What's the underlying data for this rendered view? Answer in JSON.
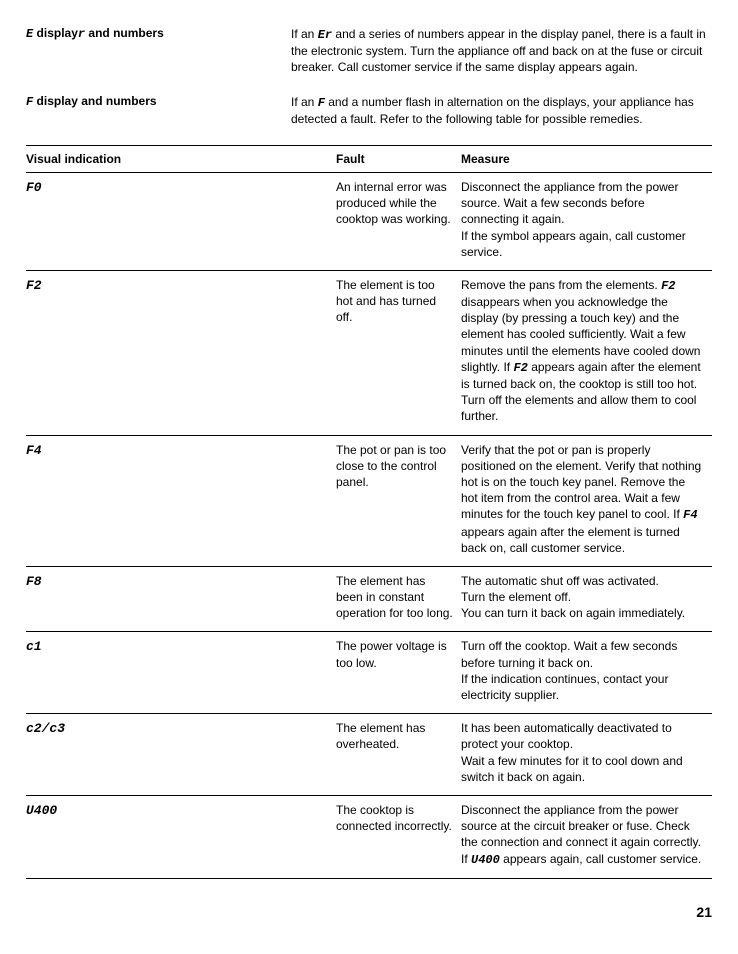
{
  "intro": [
    {
      "title_html": "<span class='seg'>E</span> display<span class='seg'>r</span> and numbers",
      "body_html": "If an <span class='seg'>Er</span> and a series of numbers appear in the display panel, there is a fault in the electronic system. Turn the appliance off and back on at the fuse or circuit breaker. Call customer service if the same display appears again."
    },
    {
      "title_html": "<span class='seg'>F</span> display and numbers",
      "body_html": "If an <span class='seg'>F</span> and a number flash in alternation on the displays, your appliance has detected a fault. Refer to the following table for possible remedies."
    }
  ],
  "headers": {
    "vis": "Visual indication",
    "fault": "Fault",
    "measure": "Measure"
  },
  "rows": [
    {
      "vis": "F0",
      "fault": "An internal error was produced while the cooktop was working.",
      "measure": "Disconnect the appliance from the power source. Wait a few seconds before connecting it again.<br>If the symbol appears again, call customer service."
    },
    {
      "vis": "F2",
      "fault": "The element is too hot and has turned off.",
      "measure": "Remove the pans from the elements. <span class='seg'>F2</span> disappears when you acknowledge the display (by pressing a touch key) and the element has cooled sufficiently. Wait a few minutes until the elements have cooled down slightly. If <span class='seg'>F2</span> appears again after the element is turned back on, the cooktop is still too hot. Turn off the elements and allow them to cool further."
    },
    {
      "vis": "F4",
      "fault": "The pot or pan is too close to the control panel.",
      "measure": "Verify that the pot or pan is properly positioned on the element. Verify that nothing hot is on the touch key panel. Remove the hot item from the control area. Wait a few minutes for the touch key panel to cool. If <span class='seg'>F4</span> appears again after the element is turned back on, call customer service."
    },
    {
      "vis": "F8",
      "fault": "The element has been in constant operation for too long.",
      "measure": "The automatic shut off was activated.<br>Turn the element off.<br>You can turn it back on again immediately."
    },
    {
      "vis": "c1",
      "fault": "The power voltage is too low.",
      "measure": "Turn off the cooktop. Wait a few seconds before turning it back on.<br>If the indication continues, contact your electricity supplier."
    },
    {
      "vis": "c2/c3",
      "fault": "The element has overheated.",
      "measure": "It has been automatically deactivated to protect your cooktop.<br>Wait a few minutes for it to cool down and switch it back on again."
    },
    {
      "vis": "U400",
      "fault": "The cooktop is connected incorrectly.",
      "measure": "Disconnect the appliance from the power source at the circuit breaker or fuse. Check the connection and connect it again correctly.<br>If <span class='seg'>U400</span> appears again, call customer service."
    }
  ],
  "page": "21"
}
